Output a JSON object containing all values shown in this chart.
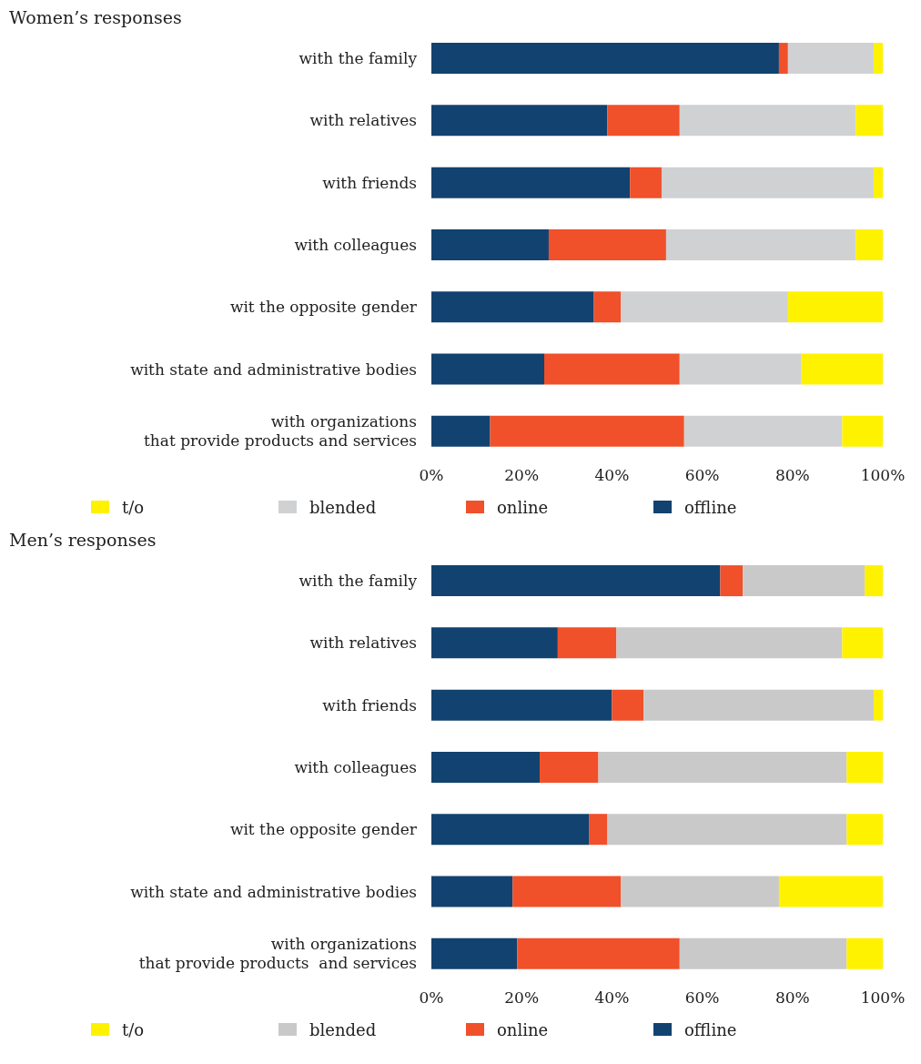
{
  "chart_data": [
    {
      "type": "bar",
      "orientation": "horizontal",
      "stacked": true,
      "title": "Women’s responses",
      "categories": [
        "with the family",
        "with relatives",
        "with friends",
        "with colleagues",
        "wit the opposite gender",
        "with state and administrative bodies",
        "with organizations\nthat provide products and services"
      ],
      "series": [
        {
          "name": "offline",
          "color": "#12426f",
          "values": [
            77,
            39,
            44,
            26,
            36,
            25,
            13
          ]
        },
        {
          "name": "online",
          "color": "#f0502a",
          "values": [
            2,
            16,
            7,
            26,
            6,
            30,
            43
          ]
        },
        {
          "name": "blended",
          "color": "#d0d1d3",
          "values": [
            19,
            39,
            47,
            42,
            37,
            27,
            35
          ]
        },
        {
          "name": "t/o",
          "color": "#fff200",
          "values": [
            2,
            6,
            2,
            6,
            21,
            18,
            9
          ]
        }
      ],
      "xlim": [
        0,
        100
      ],
      "xticks": [
        {
          "value": 0,
          "label": "0%"
        },
        {
          "value": 20,
          "label": "20%"
        },
        {
          "value": 40,
          "label": "40%"
        },
        {
          "value": 60,
          "label": "60%"
        },
        {
          "value": 80,
          "label": "80%"
        },
        {
          "value": 100,
          "label": "100%"
        }
      ],
      "grid": false,
      "legend": "bottom"
    },
    {
      "type": "bar",
      "orientation": "horizontal",
      "stacked": true,
      "title": "Men’s responses",
      "categories": [
        "with the family",
        "with relatives",
        "with friends",
        "with colleagues",
        "wit the opposite gender",
        "with state and administrative bodies",
        "with organizations\nthat provide products  and services"
      ],
      "series": [
        {
          "name": "offline",
          "color": "#12426f",
          "values": [
            64,
            28,
            40,
            24,
            35,
            18,
            19
          ]
        },
        {
          "name": "online",
          "color": "#f0502a",
          "values": [
            5,
            13,
            7,
            13,
            4,
            24,
            36
          ]
        },
        {
          "name": "blended",
          "color": "#c9c9c9",
          "values": [
            27,
            50,
            51,
            55,
            53,
            35,
            37
          ]
        },
        {
          "name": "t/o",
          "color": "#fff200",
          "values": [
            4,
            9,
            2,
            8,
            8,
            23,
            8
          ]
        }
      ],
      "xlim": [
        0,
        100
      ],
      "xticks": [
        {
          "value": 0,
          "label": "0%"
        },
        {
          "value": 20,
          "label": "20%"
        },
        {
          "value": 40,
          "label": "40%"
        },
        {
          "value": 60,
          "label": "60%"
        },
        {
          "value": 80,
          "label": "80%"
        },
        {
          "value": 100,
          "label": "100%"
        }
      ],
      "grid": false,
      "legend": "bottom"
    }
  ]
}
